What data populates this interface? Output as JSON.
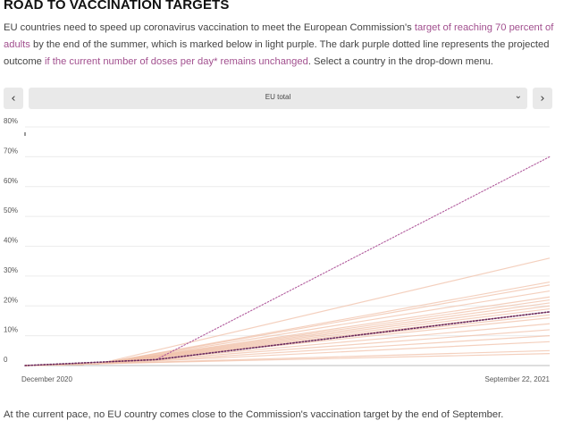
{
  "header": {
    "title": "ROAD TO VACCINATION TARGETS"
  },
  "intro": {
    "part1": "EU countries need to speed up coronavirus vaccination to meet the European Commission's ",
    "link1": "target of reaching 70 percent of adults",
    "part2": " by the end of the summer, which is marked below in light purple. The dark purple dotted line represents the projected outcome ",
    "link2": "if the current number of doses per day* remains unchanged",
    "part3": ". Select a country in the drop-down menu."
  },
  "controls": {
    "prev_icon": "‹",
    "next_icon": "›",
    "select_value": "EU total",
    "caret_icon": "⌄"
  },
  "footer": {
    "text": "At the current pace, no EU country comes close to the Commission's vaccination target by the end of September."
  },
  "chart_data": {
    "type": "line",
    "x": [
      "December 2020",
      "September 22, 2021"
    ],
    "x_tick_labels": [
      "December 2020",
      "September 22, 2021"
    ],
    "y_tick_labels": [
      "0",
      "10%",
      "20%",
      "30%",
      "40%",
      "50%",
      "60%",
      "70%",
      "80%"
    ],
    "ylim": [
      0,
      80
    ],
    "grid": true,
    "colors": {
      "target": "#b05a9c",
      "eu_projection": "#6b2a5e",
      "countries": "#f0c0a8"
    },
    "series": [
      {
        "role": "target",
        "style": "dotted-light-purple",
        "x": [
          0,
          0.25,
          1
        ],
        "y": [
          0,
          2,
          70
        ]
      },
      {
        "role": "projection",
        "style": "dotted-dark-purple",
        "x": [
          0,
          0.25,
          1
        ],
        "y": [
          0,
          2,
          18
        ]
      }
    ],
    "country_lines_end_values": [
      36,
      28,
      27,
      25,
      23,
      22,
      21,
      20,
      19,
      18,
      17,
      16,
      14,
      12,
      10,
      8,
      5,
      4
    ]
  }
}
